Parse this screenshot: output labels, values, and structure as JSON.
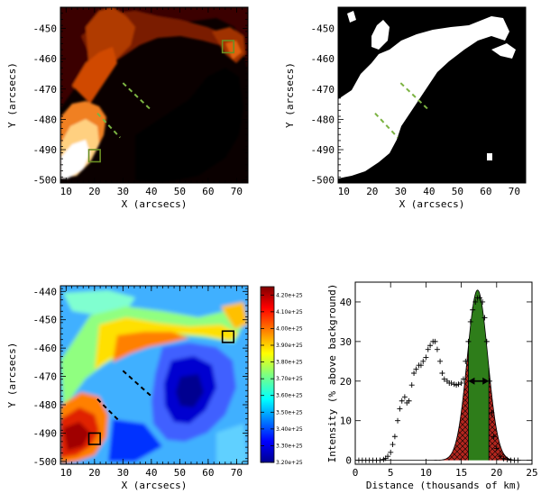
{
  "chart_data": [
    {
      "type": "heatmap",
      "id": "intensity",
      "colormap": "hot",
      "xlabel": "X (arcsecs)",
      "ylabel": "Y (arcsecs)",
      "xlim": [
        8,
        74
      ],
      "ylim": [
        -501,
        -443
      ],
      "xticks": [
        10,
        20,
        30,
        40,
        50,
        60,
        70
      ],
      "yticks": [
        -500,
        -490,
        -480,
        -470,
        -460,
        -450
      ],
      "boxes": [
        {
          "x": [
            18,
            22
          ],
          "y": [
            -494,
            -490
          ],
          "color": "#6b8e23"
        },
        {
          "x": [
            65,
            69
          ],
          "y": [
            -458,
            -454
          ],
          "color": "#6b8e23"
        }
      ],
      "dashed_lines": [
        {
          "x": [
            30,
            40
          ],
          "y": [
            -468,
            -477
          ],
          "color": "#7cb342"
        },
        {
          "x": [
            21,
            29
          ],
          "y": [
            -478,
            -486
          ],
          "color": "#7cb342"
        }
      ]
    },
    {
      "type": "heatmap",
      "id": "mask",
      "colormap": "binary",
      "xlabel": "X (arcsecs)",
      "ylabel": "Y (arcsecs)",
      "xlim": [
        8,
        74
      ],
      "ylim": [
        -501,
        -443
      ],
      "xticks": [
        10,
        20,
        30,
        40,
        50,
        60,
        70
      ],
      "yticks": [
        -500,
        -490,
        -480,
        -470,
        -460,
        -450
      ],
      "dashed_lines": [
        {
          "x": [
            30,
            40
          ],
          "y": [
            -468,
            -477
          ],
          "color": "#7cb342"
        },
        {
          "x": [
            21,
            29
          ],
          "y": [
            -478,
            -486
          ],
          "color": "#7cb342"
        }
      ]
    },
    {
      "type": "heatmap",
      "id": "column-density",
      "colormap": "jet",
      "xlabel": "X (arcsecs)",
      "ylabel": "Y (arcsecs)",
      "xlim": [
        8,
        74
      ],
      "ylim": [
        -501,
        -438
      ],
      "xticks": [
        10,
        20,
        30,
        40,
        50,
        60,
        70
      ],
      "yticks": [
        -500,
        -490,
        -480,
        -470,
        -460,
        -450,
        -440
      ],
      "colorbar": {
        "range": [
          3.2e+25,
          4.25e+25
        ],
        "tick_labels": [
          "3.20e+25",
          "3.30e+25",
          "3.40e+25",
          "3.50e+25",
          "3.60e+25",
          "3.70e+25",
          "3.80e+25",
          "3.90e+25",
          "4.00e+25",
          "4.10e+25",
          "4.20e+25"
        ]
      },
      "boxes": [
        {
          "x": [
            18,
            22
          ],
          "y": [
            -494,
            -490
          ],
          "color": "#000000"
        },
        {
          "x": [
            65,
            69
          ],
          "y": [
            -458,
            -454
          ],
          "color": "#000000"
        }
      ],
      "dashed_lines": [
        {
          "x": [
            30,
            40
          ],
          "y": [
            -468,
            -477
          ],
          "color": "#000000"
        },
        {
          "x": [
            21,
            29
          ],
          "y": [
            -478,
            -486
          ],
          "color": "#000000"
        }
      ]
    },
    {
      "type": "scatter",
      "id": "profile",
      "xlabel": "Distance (thousands of km)",
      "ylabel": "Intensity (% above background)",
      "xlim": [
        0,
        25
      ],
      "ylim": [
        -1,
        45
      ],
      "xticks": [
        0,
        5,
        10,
        15,
        20,
        25
      ],
      "yticks": [
        0,
        10,
        20,
        30,
        40
      ],
      "points": {
        "x": [
          0.5,
          1,
          1.5,
          2,
          2.5,
          3,
          3.5,
          4,
          4.3,
          4.6,
          5,
          5.3,
          5.6,
          6,
          6.3,
          6.6,
          7,
          7.3,
          7.6,
          8,
          8.3,
          8.6,
          9,
          9.3,
          9.6,
          10,
          10.3,
          10.6,
          11,
          11.3,
          11.6,
          12,
          12.3,
          12.6,
          13,
          13.3,
          13.6,
          14,
          14.3,
          14.6,
          15,
          15.3,
          15.6,
          16,
          16.3,
          16.6,
          17,
          17.3,
          17.6,
          18,
          18.3,
          18.6,
          19,
          19.3,
          19.6,
          20,
          20.5,
          21,
          21.5,
          22,
          22.5,
          23
        ],
        "y": [
          0,
          0,
          0,
          0,
          0,
          0,
          0,
          0.2,
          0.5,
          1,
          2,
          4,
          6,
          10,
          13,
          15,
          16,
          14.5,
          15,
          19,
          22,
          23,
          24,
          24,
          25,
          26,
          28,
          29,
          30,
          30,
          28,
          25,
          22,
          20.5,
          20,
          19.5,
          19.5,
          19.2,
          19,
          19.2,
          19.5,
          20.5,
          25,
          30,
          35,
          38,
          40,
          41,
          41,
          40,
          36,
          30,
          20,
          12,
          6,
          3,
          1,
          0.4,
          0.2,
          0,
          0,
          0
        ]
      },
      "gaussian": {
        "center": 17.3,
        "amplitude": 43,
        "sigma": 1.45,
        "fwhm_range": [
          16.0,
          18.9
        ],
        "fill_core": "#2e7d1a",
        "fill_wings": "#b3261e"
      },
      "arrow": {
        "x": [
          16.0,
          18.9
        ],
        "y": 20
      }
    }
  ]
}
